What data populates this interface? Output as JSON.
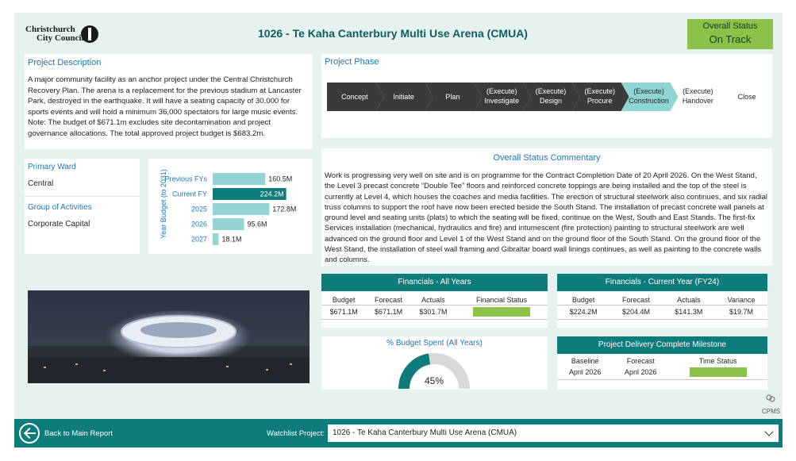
{
  "header": {
    "logo_line1": "Christchurch",
    "logo_line2": "City Council",
    "title": "1026 - Te Kaha Canterbury Multi Use Arena (CMUA)",
    "status_label": "Overall Status",
    "status_value": "On Track",
    "status_color": "#8bc34a"
  },
  "description": {
    "title": "Project Description",
    "text": "A major community facility as an anchor project under the Central Christchurch Recovery Plan. The arena is a replacement for the previous stadium at Lancaster Park, destroyed in the earthquake. It will have a seating capacity of 30,000 for sports events and will hold a minimum 36,000 spectators for large music events. Note: The budget of $671.1m excludes site decontamination and project governance allocations. The total approved project budget is $683.2m."
  },
  "phase": {
    "title": "Project Phase",
    "steps": [
      {
        "line1": "Concept",
        "line2": ""
      },
      {
        "line1": "Initiate",
        "line2": ""
      },
      {
        "line1": "Plan",
        "line2": ""
      },
      {
        "line1": "(Execute)",
        "line2": "Investigate"
      },
      {
        "line1": "(Execute)",
        "line2": "Design"
      },
      {
        "line1": "(Execute)",
        "line2": "Procure"
      },
      {
        "line1": "(Execute)",
        "line2": "Construction"
      },
      {
        "line1": "(Execute)",
        "line2": "Handover"
      },
      {
        "line1": "Close",
        "line2": ""
      }
    ],
    "current_index": 6,
    "done_color": "#3a3a3a",
    "current_color": "#8fd5d4"
  },
  "ward": {
    "ward_label": "Primary Ward",
    "ward_value": "Central",
    "group_label": "Group of Activities",
    "group_value": "Corporate Capital"
  },
  "budget": {
    "axis_title": "Year Budget (to 2031)"
  },
  "chart_data": {
    "type": "bar",
    "orientation": "horizontal",
    "ylabel": "Year Budget (to 2031)",
    "categories": [
      "Previous FYs",
      "Current FY",
      "2025",
      "2026",
      "2027"
    ],
    "values": [
      160.5,
      224.2,
      172.8,
      95.6,
      18.1
    ],
    "labels": [
      "160.5M",
      "224.2M",
      "172.8M",
      "95.6M",
      "18.1M"
    ],
    "highlight_index": 1,
    "colors": {
      "normal": "#93d5d4",
      "highlight": "#0e7c7b"
    }
  },
  "commentary": {
    "title": "Overall Status Commentary",
    "text": "Work is progressing very well on site and is on programme for the Contract Completion Date of 20 April 2026. On the West Stand, the Level 3 precast concrete “Double Tee” floors and reinforced concrete toppings are being installed and the top of the steel is currently at Level 4, which houses the coaches and media facilities. The erection of structural steelwork also continues, and six radial truss columns to support the roof have now been erected beside the South Stand. The installation of precast concrete wall panels at ground level and seating units (plats) to which the seating will be fixed, continue on the West, South and East Stands. The first-fix Services installation (mechanical, hydraulics and fire) and intumescent (fire protection) painting to structural steelwork are well advanced on the ground floor and Level 1 of the West Stand and on the ground floor of the South Stand. On the ground floor of the West Stand, the installation of steel wall framing and Gibraltar board wall linings continues, as well as painting to the concrete walls and columns."
  },
  "financials_all": {
    "title": "Financials - All Years",
    "headers": [
      "Budget",
      "Forecast",
      "Actuals",
      "Financial Status"
    ],
    "values": [
      "$671.1M",
      "$671.1M",
      "$301.7M"
    ],
    "status_color": "#8bc34a"
  },
  "financials_current": {
    "title": "Financials - Current Year (FY24)",
    "headers": [
      "Budget",
      "Forecast",
      "Actuals",
      "Variance"
    ],
    "values": [
      "$224.2M",
      "$204.4M",
      "$141.3M",
      "$19.7M"
    ]
  },
  "budget_spent": {
    "title": "% Budget Spent (All Years)",
    "value_label": "45%",
    "fraction": 0.45,
    "fill_color": "#0e7c7b",
    "track_color": "#d9d9d9"
  },
  "milestone": {
    "title": "Project Delivery Complete Milestone",
    "headers": [
      "Baseline",
      "Forecast",
      "Time Status"
    ],
    "values": [
      "April 2026",
      "April 2026"
    ],
    "status_color": "#8bc34a"
  },
  "cpms_label": "CPMS",
  "footer": {
    "back_label": "Back to Main Report",
    "watchlist_label": "Watchlist Project:",
    "watchlist_value": "1026 - Te Kaha Canterbury Multi Use Arena (CMUA)"
  }
}
